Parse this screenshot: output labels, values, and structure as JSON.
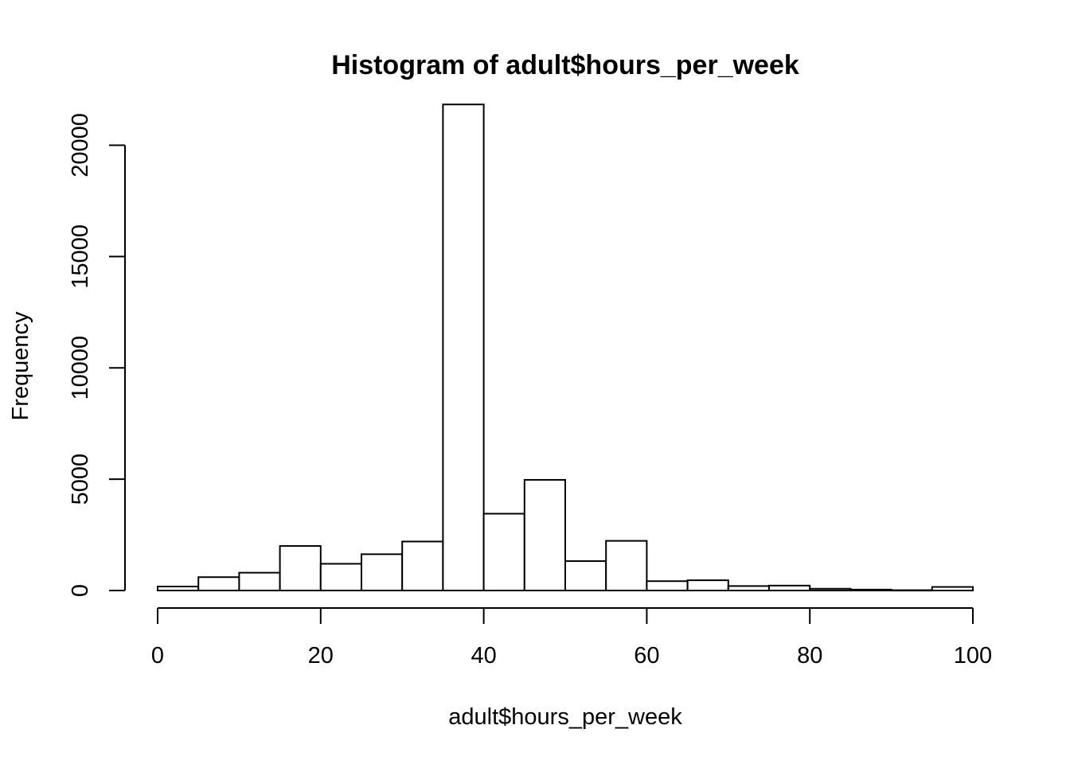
{
  "chart_data": {
    "type": "bar",
    "title": "Histogram of adult$hours_per_week",
    "xlabel": "adult$hours_per_week",
    "ylabel": "Frequency",
    "xlim": [
      0,
      100
    ],
    "ylim": [
      0,
      22000
    ],
    "x_ticks": [
      "0",
      "20",
      "40",
      "60",
      "80",
      "100"
    ],
    "y_ticks": [
      "0",
      "5000",
      "10000",
      "15000",
      "20000"
    ],
    "bin_width": 5,
    "bins": [
      {
        "start": 0,
        "end": 5,
        "count": 180
      },
      {
        "start": 5,
        "end": 10,
        "count": 600
      },
      {
        "start": 10,
        "end": 15,
        "count": 800
      },
      {
        "start": 15,
        "end": 20,
        "count": 2000
      },
      {
        "start": 20,
        "end": 25,
        "count": 1200
      },
      {
        "start": 25,
        "end": 30,
        "count": 1630
      },
      {
        "start": 30,
        "end": 35,
        "count": 2200
      },
      {
        "start": 35,
        "end": 40,
        "count": 21830
      },
      {
        "start": 40,
        "end": 45,
        "count": 3450
      },
      {
        "start": 45,
        "end": 50,
        "count": 4970
      },
      {
        "start": 50,
        "end": 55,
        "count": 1320
      },
      {
        "start": 55,
        "end": 60,
        "count": 2230
      },
      {
        "start": 60,
        "end": 65,
        "count": 420
      },
      {
        "start": 65,
        "end": 70,
        "count": 460
      },
      {
        "start": 70,
        "end": 75,
        "count": 200
      },
      {
        "start": 75,
        "end": 80,
        "count": 220
      },
      {
        "start": 80,
        "end": 85,
        "count": 80
      },
      {
        "start": 85,
        "end": 90,
        "count": 40
      },
      {
        "start": 90,
        "end": 95,
        "count": 15
      },
      {
        "start": 95,
        "end": 100,
        "count": 160
      }
    ],
    "grid": false,
    "bar_fill": "#ffffff",
    "bar_stroke": "#000000"
  }
}
